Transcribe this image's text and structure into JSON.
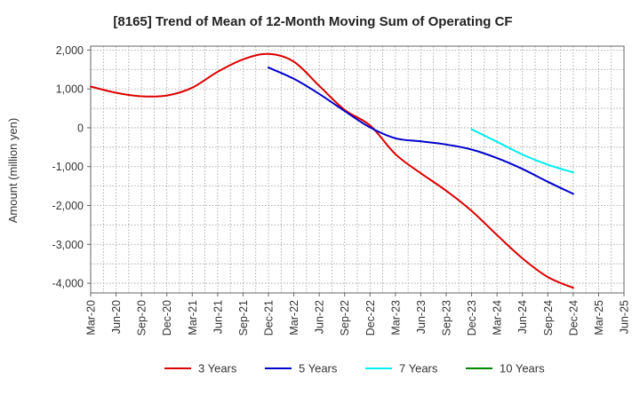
{
  "chart_data": {
    "type": "line",
    "title": "[8165]  Trend of Mean of 12-Month Moving Sum of Operating CF",
    "xlabel": "",
    "ylabel": "Amount (million yen)",
    "ylim": [
      -4250,
      2100
    ],
    "yticks": [
      2000,
      1000,
      0,
      -1000,
      -2000,
      -3000,
      -4000
    ],
    "ytick_labels": [
      "2,000",
      "1,000",
      "0",
      "-1,000",
      "-2,000",
      "-3,000",
      "-4,000"
    ],
    "categories": [
      "Mar-20",
      "Jun-20",
      "Sep-20",
      "Dec-20",
      "Mar-21",
      "Jun-21",
      "Sep-21",
      "Dec-21",
      "Mar-22",
      "Jun-22",
      "Sep-22",
      "Dec-22",
      "Mar-23",
      "Jun-23",
      "Sep-23",
      "Dec-23",
      "Mar-24",
      "Jun-24",
      "Sep-24",
      "Dec-24",
      "Mar-25",
      "Jun-25"
    ],
    "grid": true,
    "legend_position": "bottom",
    "series": [
      {
        "name": "3 Years",
        "color": "#dd0000",
        "values": [
          1060,
          900,
          810,
          830,
          1030,
          1440,
          1760,
          1900,
          1700,
          1080,
          460,
          60,
          -680,
          -1170,
          -1620,
          -2140,
          -2760,
          -3360,
          -3840,
          -4120,
          null,
          null
        ]
      },
      {
        "name": "5 Years",
        "color": "#0000cc",
        "values": [
          null,
          null,
          null,
          null,
          null,
          null,
          null,
          1550,
          1260,
          870,
          430,
          10,
          -270,
          -350,
          -430,
          -560,
          -780,
          -1060,
          -1390,
          -1700,
          null,
          null
        ]
      },
      {
        "name": "7 Years",
        "color": "#00eeee",
        "values": [
          null,
          null,
          null,
          null,
          null,
          null,
          null,
          null,
          null,
          null,
          null,
          null,
          null,
          null,
          null,
          -40,
          -360,
          -690,
          -950,
          -1150,
          null,
          null
        ]
      },
      {
        "name": "10 Years",
        "color": "#008800",
        "values": [
          null,
          null,
          null,
          null,
          null,
          null,
          null,
          null,
          null,
          null,
          null,
          null,
          null,
          null,
          null,
          null,
          null,
          null,
          null,
          null,
          null,
          null
        ]
      }
    ]
  }
}
